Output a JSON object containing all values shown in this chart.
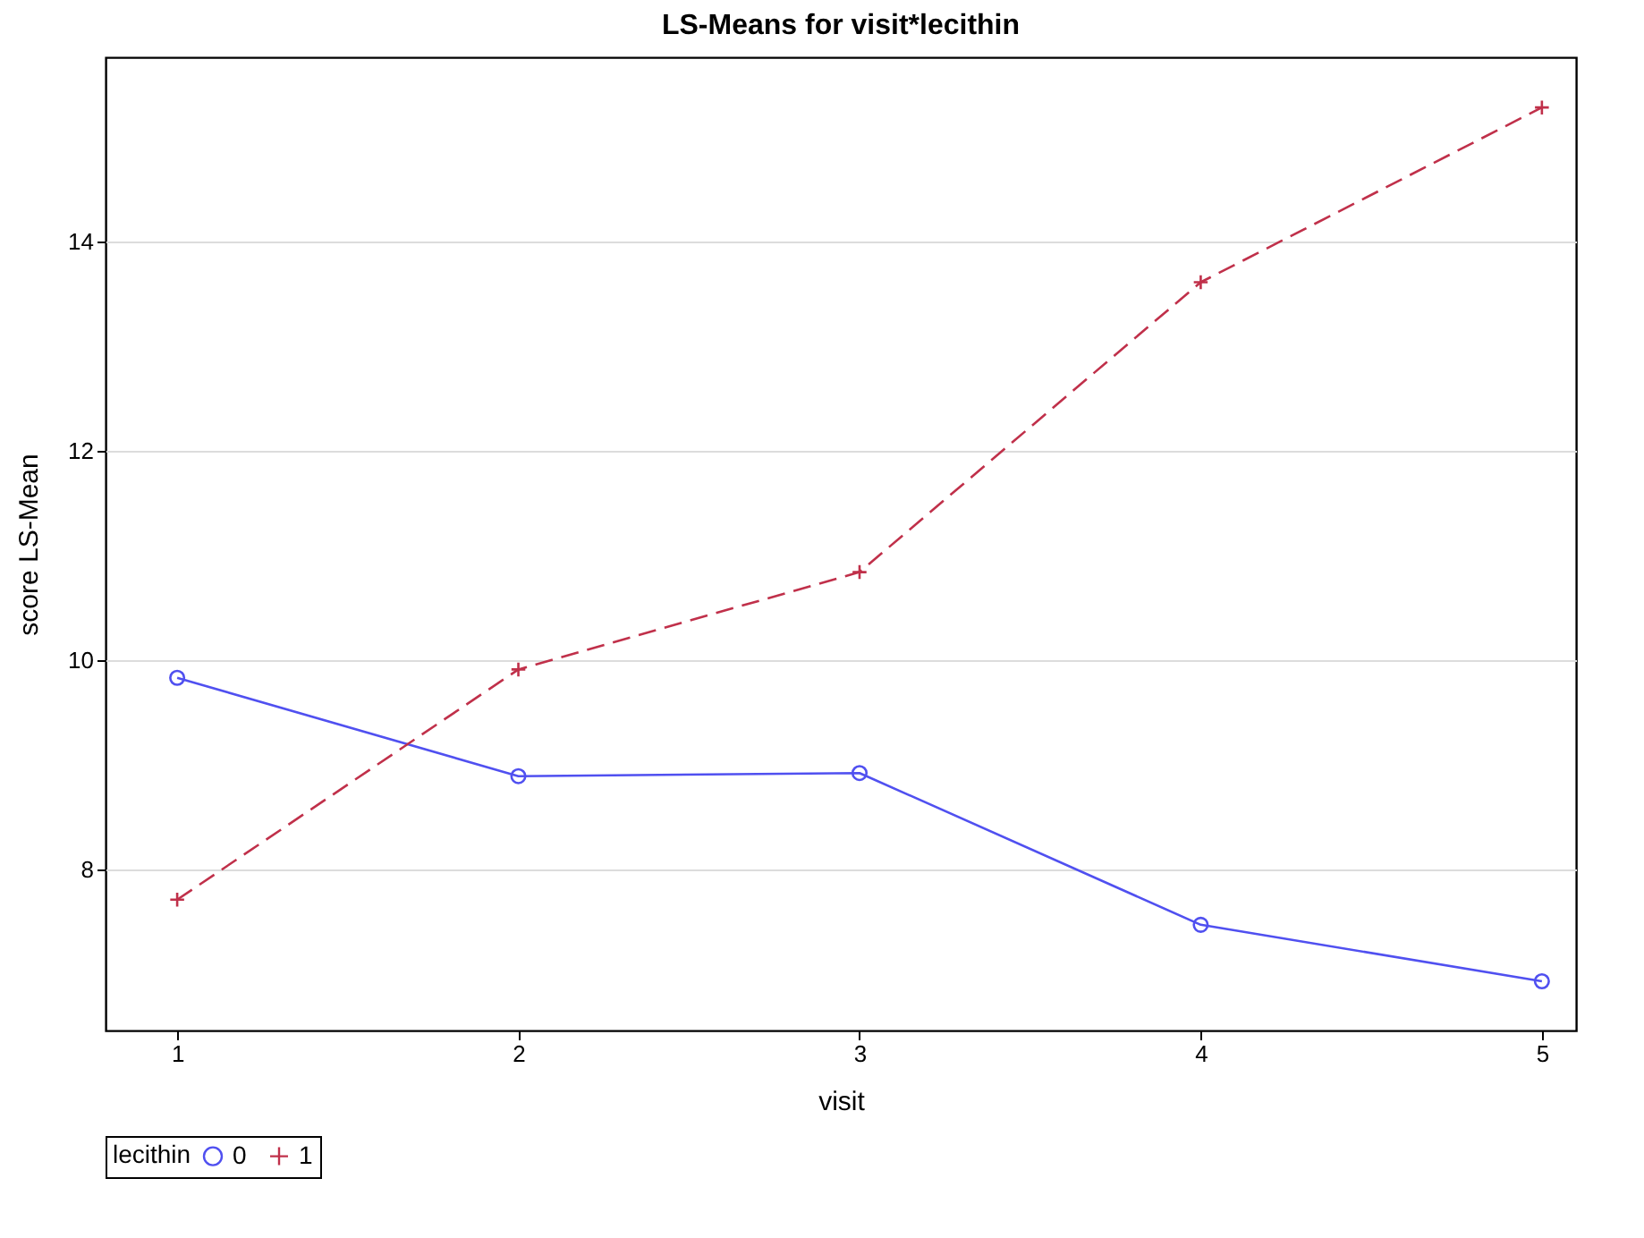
{
  "chart_data": {
    "type": "line",
    "title": "LS-Means for visit*lecithin",
    "xlabel": "visit",
    "ylabel": "score LS-Mean",
    "legend_title": "lecithin",
    "x": [
      1,
      2,
      3,
      4,
      5
    ],
    "series": [
      {
        "name": "0",
        "color": "#5050f0",
        "marker": "circle",
        "line_style": "solid",
        "values": [
          9.83,
          8.89,
          8.92,
          7.47,
          6.93
        ]
      },
      {
        "name": "1",
        "color": "#c0304a",
        "marker": "cross",
        "line_style": "dashed",
        "values": [
          7.71,
          9.91,
          10.84,
          13.61,
          15.28
        ]
      }
    ],
    "xlim": [
      0.79,
      5.1
    ],
    "xticks": [
      1,
      2,
      3,
      4,
      5
    ],
    "ylim": [
      6.46,
      15.76
    ],
    "yticks": [
      8,
      10,
      12,
      14
    ],
    "grid": "y",
    "legend": "bottom"
  }
}
